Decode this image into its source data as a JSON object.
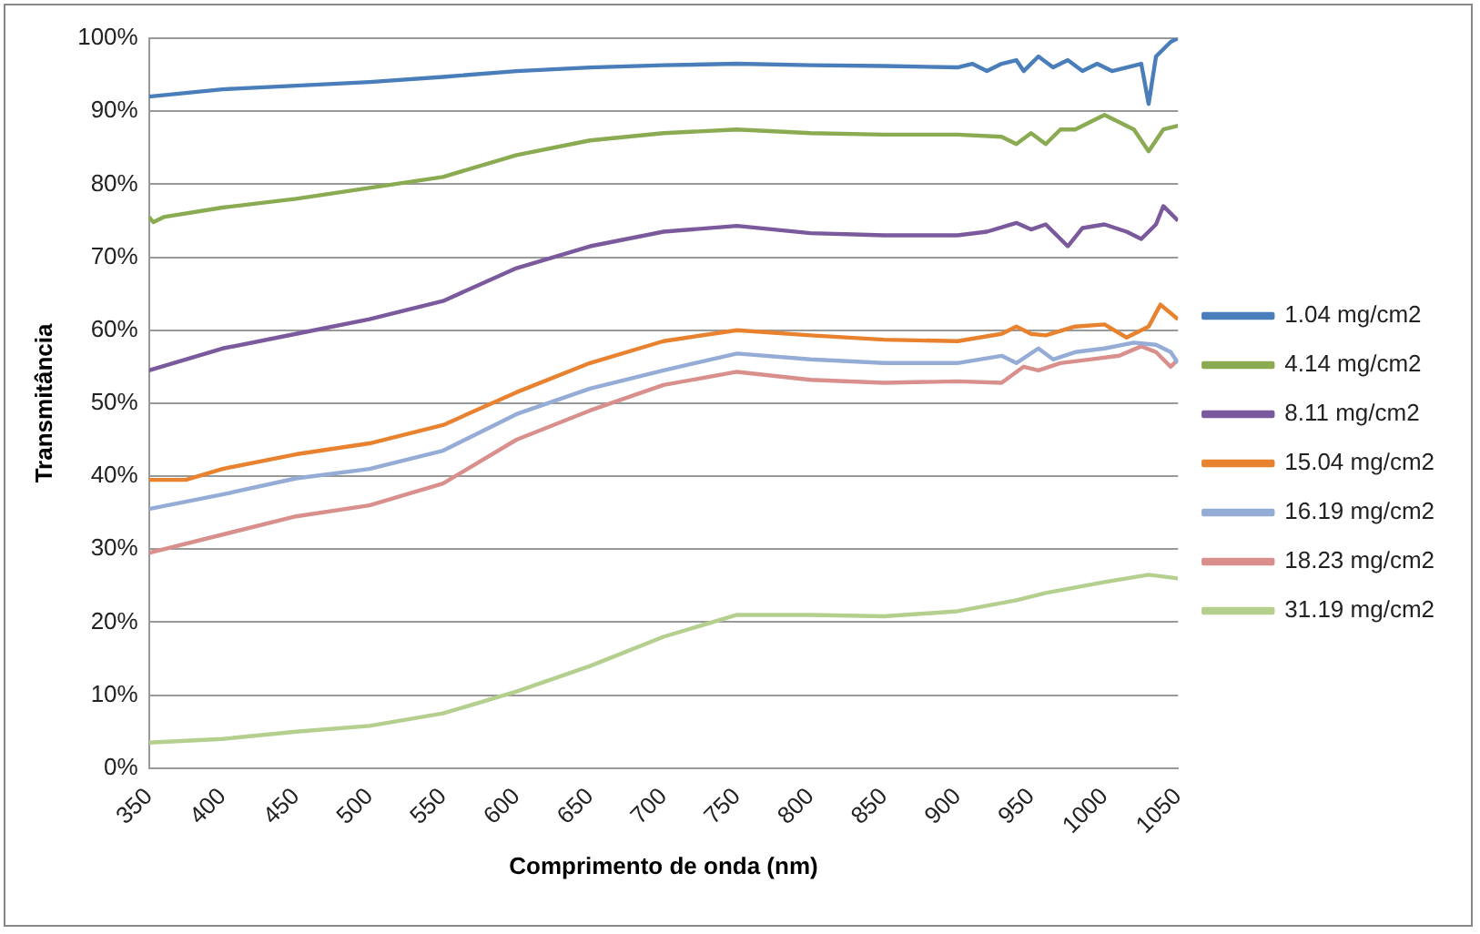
{
  "chart_data": {
    "type": "line",
    "xlabel": "Comprimento de onda (nm)",
    "ylabel": "Transmitância",
    "xlim": [
      350,
      1050
    ],
    "xticks": [
      350,
      400,
      450,
      500,
      550,
      600,
      650,
      700,
      750,
      800,
      850,
      900,
      950,
      1000,
      1050
    ],
    "ylim": [
      0,
      100
    ],
    "yticks": [
      {
        "value": 0,
        "label": "0%"
      },
      {
        "value": 10,
        "label": "10%"
      },
      {
        "value": 20,
        "label": "20%"
      },
      {
        "value": 30,
        "label": "30%"
      },
      {
        "value": 40,
        "label": "40%"
      },
      {
        "value": 50,
        "label": "50%"
      },
      {
        "value": 60,
        "label": "60%"
      },
      {
        "value": 70,
        "label": "70%"
      },
      {
        "value": 80,
        "label": "80%"
      },
      {
        "value": 90,
        "label": "90%"
      },
      {
        "value": 100,
        "label": "100%"
      }
    ],
    "grid": "y",
    "legend": "right",
    "marker": "none",
    "line_style": "solid",
    "series": [
      {
        "name": "1.04 mg/cm2",
        "color": "#4a7ebb",
        "x": [
          350,
          375,
          400,
          450,
          500,
          550,
          600,
          650,
          700,
          750,
          800,
          850,
          900,
          910,
          920,
          930,
          940,
          945,
          955,
          965,
          975,
          985,
          995,
          1005,
          1015,
          1025,
          1030,
          1035,
          1040,
          1045,
          1050
        ],
        "values": [
          92,
          92.5,
          93,
          93.5,
          94,
          94.7,
          95.5,
          96,
          96.3,
          96.5,
          96.3,
          96.2,
          96,
          96.5,
          95.5,
          96.5,
          97,
          95.5,
          97.5,
          96,
          97,
          95.5,
          96.5,
          95.5,
          96,
          96.5,
          91,
          97.5,
          98.5,
          99.5,
          100
        ]
      },
      {
        "name": "4.14 mg/cm2",
        "color": "#8bab52",
        "x": [
          350,
          353,
          360,
          400,
          450,
          500,
          550,
          600,
          650,
          700,
          750,
          800,
          850,
          900,
          930,
          940,
          950,
          960,
          970,
          980,
          990,
          1000,
          1010,
          1020,
          1030,
          1040,
          1050
        ],
        "values": [
          75.5,
          74.8,
          75.5,
          76.8,
          78,
          79.5,
          81,
          84,
          86,
          87,
          87.5,
          87,
          86.8,
          86.8,
          86.5,
          85.5,
          87,
          85.5,
          87.5,
          87.5,
          88.5,
          89.5,
          88.5,
          87.5,
          84.5,
          87.5,
          88
        ]
      },
      {
        "name": "8.11 mg/cm2",
        "color": "#7a5a9c",
        "x": [
          350,
          400,
          450,
          500,
          550,
          600,
          650,
          700,
          750,
          800,
          850,
          900,
          920,
          940,
          950,
          960,
          975,
          985,
          1000,
          1015,
          1025,
          1035,
          1040,
          1050
        ],
        "values": [
          54.5,
          57.5,
          59.5,
          61.5,
          64,
          68.5,
          71.5,
          73.5,
          74.3,
          73.3,
          73,
          73,
          73.5,
          74.7,
          73.8,
          74.5,
          71.5,
          74,
          74.5,
          73.5,
          72.5,
          74.5,
          77,
          75
        ]
      },
      {
        "name": "15.04 mg/cm2",
        "color": "#e8822f",
        "x": [
          350,
          375,
          400,
          450,
          500,
          550,
          600,
          650,
          700,
          750,
          800,
          850,
          900,
          930,
          940,
          950,
          960,
          980,
          1000,
          1015,
          1030,
          1038,
          1050
        ],
        "values": [
          39.5,
          39.5,
          41,
          43,
          44.5,
          47,
          51.5,
          55.5,
          58.5,
          60,
          59.3,
          58.7,
          58.5,
          59.5,
          60.5,
          59.5,
          59.3,
          60.5,
          60.8,
          59,
          60.5,
          63.5,
          61.5
        ]
      },
      {
        "name": "16.19 mg/cm2",
        "color": "#94acd6",
        "x": [
          350,
          400,
          450,
          500,
          550,
          600,
          650,
          700,
          750,
          800,
          850,
          900,
          930,
          940,
          955,
          965,
          980,
          1000,
          1020,
          1035,
          1045,
          1050
        ],
        "values": [
          35.5,
          37.5,
          39.7,
          41,
          43.5,
          48.5,
          52,
          54.5,
          56.8,
          56,
          55.5,
          55.5,
          56.5,
          55.5,
          57.5,
          56,
          57,
          57.5,
          58.3,
          58,
          57,
          55.5
        ]
      },
      {
        "name": "18.23 mg/cm2",
        "color": "#d9908d",
        "x": [
          350,
          400,
          450,
          500,
          550,
          600,
          650,
          700,
          750,
          800,
          850,
          900,
          930,
          945,
          955,
          970,
          990,
          1010,
          1025,
          1035,
          1045,
          1050
        ],
        "values": [
          29.5,
          32,
          34.5,
          36,
          39,
          45,
          49,
          52.5,
          54.3,
          53.2,
          52.8,
          53,
          52.8,
          55,
          54.5,
          55.5,
          56,
          56.5,
          57.8,
          57,
          55,
          56
        ]
      },
      {
        "name": "31.19 mg/cm2",
        "color": "#b5cf8f",
        "x": [
          350,
          400,
          450,
          500,
          550,
          600,
          650,
          700,
          750,
          800,
          850,
          900,
          940,
          960,
          1000,
          1030,
          1050
        ],
        "values": [
          3.5,
          4,
          5,
          5.8,
          7.5,
          10.5,
          14,
          18,
          21,
          21,
          20.8,
          21.5,
          23,
          24,
          25.5,
          26.5,
          26
        ]
      }
    ]
  }
}
